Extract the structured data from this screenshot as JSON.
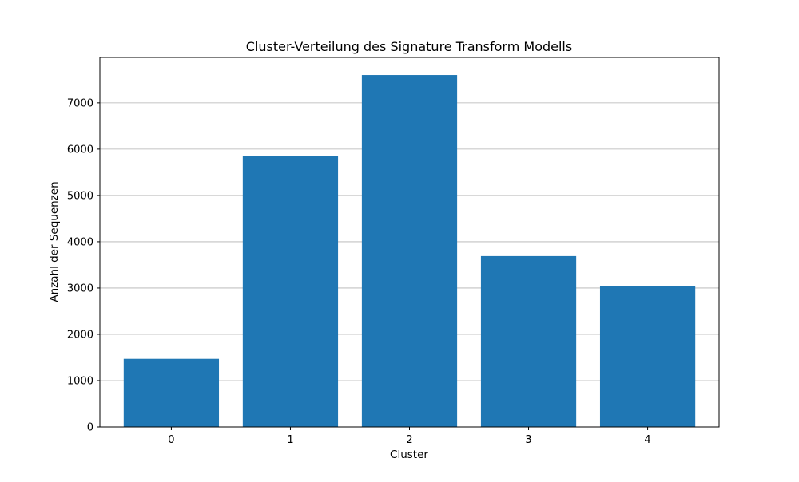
{
  "chart_data": {
    "type": "bar",
    "title": "Cluster-Verteilung des Signature Transform Modells",
    "xlabel": "Cluster",
    "ylabel": "Anzahl der Sequenzen",
    "categories": [
      "0",
      "1",
      "2",
      "3",
      "4"
    ],
    "values": [
      1470,
      5850,
      7600,
      3690,
      3040
    ],
    "ylim": [
      0,
      7980
    ],
    "yticks": [
      0,
      1000,
      2000,
      3000,
      4000,
      5000,
      6000,
      7000
    ],
    "grid": "y",
    "bar_color": "#1f77b4",
    "grid_color": "#b0b0b0"
  }
}
